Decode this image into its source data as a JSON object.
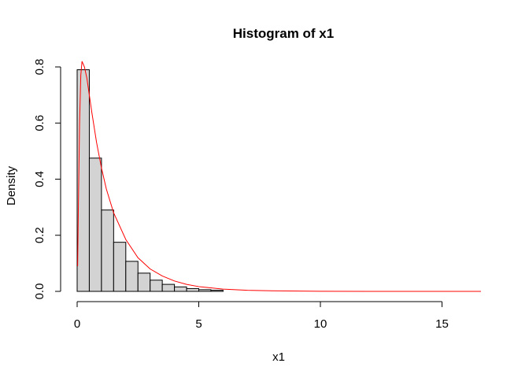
{
  "chart_data": {
    "type": "bar",
    "title": "Histogram of x1",
    "xlabel": "x1",
    "ylabel": "Density",
    "xlim": [
      0,
      16.6
    ],
    "ylim": [
      0,
      0.8
    ],
    "x_ticks": [
      0,
      5,
      10,
      15
    ],
    "x_tick_labels": [
      "0",
      "5",
      "10",
      "15"
    ],
    "y_ticks": [
      0.0,
      0.2,
      0.4,
      0.6,
      0.8
    ],
    "y_tick_labels": [
      "0.0",
      "0.2",
      "0.4",
      "0.6",
      "0.8"
    ],
    "bin_width": 0.5,
    "bins": [
      {
        "start": 0.0,
        "end": 0.5,
        "density": 0.79
      },
      {
        "start": 0.5,
        "end": 1.0,
        "density": 0.475
      },
      {
        "start": 1.0,
        "end": 1.5,
        "density": 0.29
      },
      {
        "start": 1.5,
        "end": 2.0,
        "density": 0.175
      },
      {
        "start": 2.0,
        "end": 2.5,
        "density": 0.107
      },
      {
        "start": 2.5,
        "end": 3.0,
        "density": 0.065
      },
      {
        "start": 3.0,
        "end": 3.5,
        "density": 0.04
      },
      {
        "start": 3.5,
        "end": 4.0,
        "density": 0.025
      },
      {
        "start": 4.0,
        "end": 4.5,
        "density": 0.016
      },
      {
        "start": 4.5,
        "end": 5.0,
        "density": 0.01
      },
      {
        "start": 5.0,
        "end": 5.5,
        "density": 0.006
      },
      {
        "start": 5.5,
        "end": 6.0,
        "density": 0.004
      }
    ],
    "density_curve": {
      "color": "#ff0000",
      "points": [
        [
          0.02,
          0.09
        ],
        [
          0.05,
          0.3
        ],
        [
          0.1,
          0.6
        ],
        [
          0.15,
          0.77
        ],
        [
          0.2,
          0.82
        ],
        [
          0.3,
          0.8
        ],
        [
          0.4,
          0.76
        ],
        [
          0.5,
          0.7
        ],
        [
          0.6,
          0.64
        ],
        [
          0.8,
          0.53
        ],
        [
          1.0,
          0.44
        ],
        [
          1.2,
          0.365
        ],
        [
          1.5,
          0.28
        ],
        [
          2.0,
          0.185
        ],
        [
          2.5,
          0.12
        ],
        [
          3.0,
          0.08
        ],
        [
          3.5,
          0.055
        ],
        [
          4.0,
          0.037
        ],
        [
          4.5,
          0.025
        ],
        [
          5.0,
          0.017
        ],
        [
          6.0,
          0.008
        ],
        [
          7.0,
          0.004
        ],
        [
          8.0,
          0.002
        ],
        [
          10.0,
          0.0005
        ],
        [
          12.0,
          0.0001
        ],
        [
          16.6,
          0.0
        ]
      ]
    },
    "bar_fill": "#d3d3d3",
    "grid": false,
    "legend": "none"
  }
}
